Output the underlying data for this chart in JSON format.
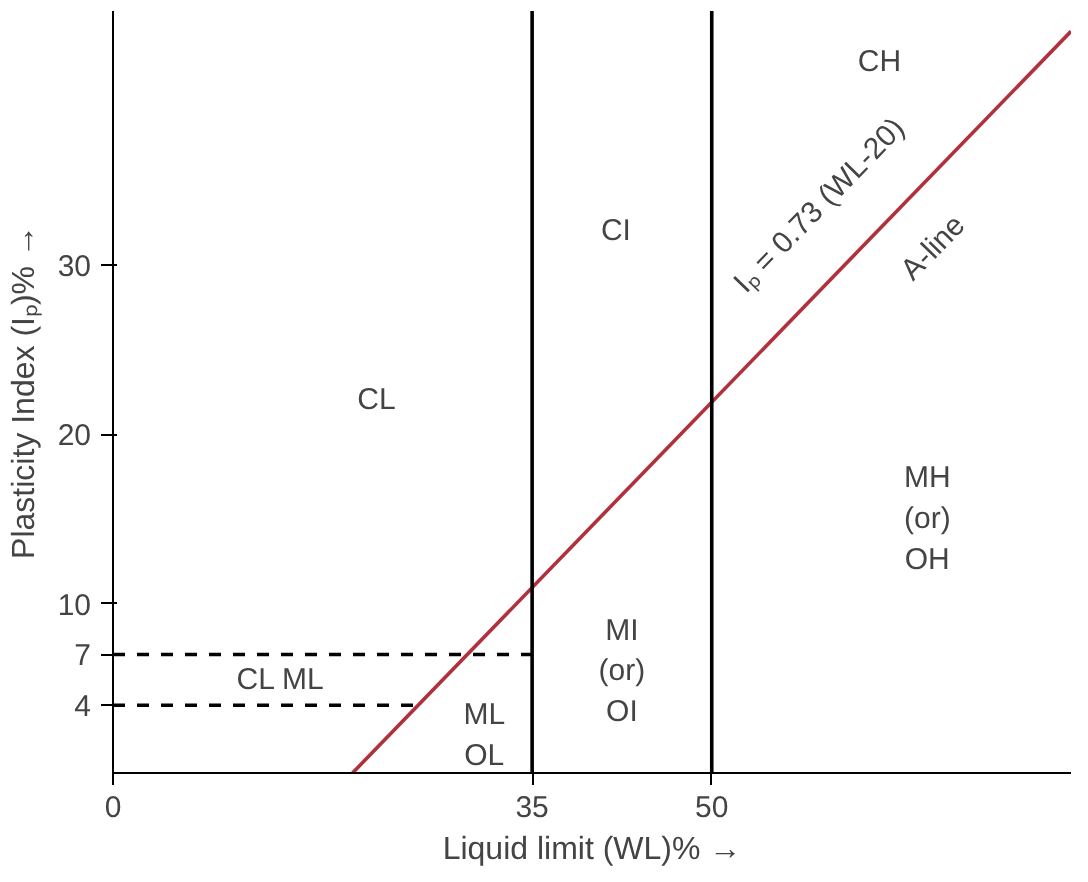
{
  "chart_data": {
    "type": "line",
    "xlabel": "Liquid limit (WL)% →",
    "ylabel": "Plasticity Index (Iₚ)% →",
    "xlim": [
      0,
      80
    ],
    "ylim": [
      0,
      45
    ],
    "xticks": [
      0,
      35,
      50
    ],
    "yticks": [
      4,
      7,
      10,
      20,
      30
    ],
    "grid": false,
    "marker": "none",
    "series": [
      {
        "x": [
          20,
          80
        ],
        "values": [
          0,
          43.8
        ],
        "color": "#b0303c",
        "line_style": "solid"
      },
      {
        "x": [
          0,
          35
        ],
        "values": [
          7,
          7
        ],
        "color": "#000000",
        "line_style": "dashed"
      },
      {
        "x": [
          0,
          25.5
        ],
        "values": [
          4,
          4
        ],
        "color": "#000000",
        "line_style": "dashed"
      }
    ],
    "ref_lines": [
      {
        "axis": "x",
        "value": 35,
        "label": null,
        "color": "#000000",
        "line_style": "solid"
      },
      {
        "axis": "x",
        "value": 50,
        "label": null,
        "color": "#000000",
        "line_style": "solid"
      }
    ],
    "annotations": [
      "CL",
      "CI",
      "CH",
      "MH\n(or)\nOH",
      "MI\n(or)\nOI",
      "ML\nOL",
      "CL ML",
      "Iₚ = 0.73 (WL-20)",
      "A-line"
    ]
  }
}
